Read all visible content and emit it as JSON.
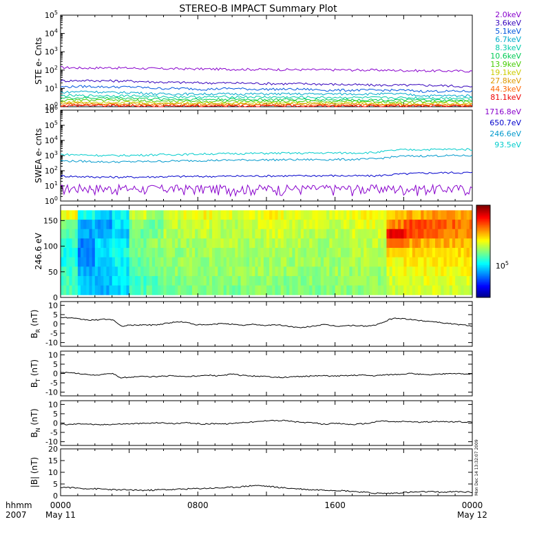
{
  "title": "STEREO-B IMPACT Summary Plot",
  "footer": {
    "time_label": "hhmm",
    "year_label": "2007",
    "stamp": "Mon Dec 14 13:32:07 2009"
  },
  "colors": {
    "ste_channels": [
      "#8800cc",
      "#3300bb",
      "#0055dd",
      "#00aacc",
      "#00ccaa",
      "#00cc55",
      "#44cc00",
      "#cccc00",
      "#dd9900",
      "#ff6600",
      "#ee0000"
    ],
    "swea_channels": [
      "#8800cc",
      "#0000cc",
      "#0099cc",
      "#00cccc"
    ],
    "mag_trace": "#000000"
  },
  "chart_data": [
    {
      "type": "line",
      "id": "ste",
      "ylabel": "STE e- Cnts",
      "y_scale": "log",
      "ylim": [
        1,
        100000
      ],
      "y_ticks": [
        {
          "v": 1,
          "b": "10",
          "e": "0"
        },
        {
          "v": 10,
          "b": "10",
          "e": "1"
        },
        {
          "v": 100,
          "b": "10",
          "e": "2"
        },
        {
          "v": 1000,
          "b": "10",
          "e": "3"
        },
        {
          "v": 10000,
          "b": "10",
          "e": "4"
        },
        {
          "v": 100000,
          "b": "10",
          "e": "5"
        }
      ],
      "series": [
        {
          "name": "2.0keV",
          "values": [
            140,
            130,
            135,
            128,
            120,
            118,
            115,
            112,
            110,
            108,
            105,
            104,
            102,
            100,
            96,
            92,
            90,
            88
          ]
        },
        {
          "name": "3.6keV",
          "values": [
            26,
            27,
            26,
            25,
            22,
            21,
            20,
            20,
            19,
            18,
            18,
            17,
            16,
            15,
            15,
            15,
            14,
            12
          ]
        },
        {
          "name": "5.1keV",
          "values": [
            12,
            13,
            12,
            12,
            10,
            10,
            9,
            10,
            9,
            9,
            9,
            8,
            8,
            8,
            8,
            7,
            7,
            7
          ]
        },
        {
          "name": "6.7keV",
          "values": [
            6,
            7,
            6,
            6,
            5,
            5,
            5,
            5,
            5,
            5,
            5,
            5,
            5,
            5,
            5,
            4,
            4,
            4
          ]
        },
        {
          "name": "8.3keV",
          "values": [
            4,
            4,
            4,
            4,
            3.5,
            3.5,
            3.4,
            3.5,
            3.4,
            3.3,
            3.3,
            3.2,
            3.2,
            3.1,
            3.1,
            3,
            3,
            3
          ]
        },
        {
          "name": "10.6keV",
          "values": [
            3,
            3,
            3,
            3,
            2.6,
            2.6,
            2.5,
            2.6,
            2.5,
            2.5,
            2.5,
            2.4,
            2.4,
            2.4,
            2.3,
            2.3,
            2.2,
            2.2
          ]
        },
        {
          "name": "13.9keV",
          "values": [
            2.2,
            2.3,
            2.2,
            2.2,
            2,
            2,
            2,
            2,
            2,
            2,
            2,
            2,
            2,
            1.9,
            1.9,
            1.9,
            1.9,
            1.9
          ]
        },
        {
          "name": "19.1keV",
          "values": [
            1.8,
            1.8,
            1.8,
            1.7,
            1.6,
            1.6,
            1.6,
            1.6,
            1.6,
            1.6,
            1.6,
            1.6,
            1.6,
            1.5,
            1.5,
            1.5,
            1.5,
            1.5
          ]
        },
        {
          "name": "27.8keV",
          "values": [
            1.5,
            1.5,
            1.5,
            1.4,
            1.4,
            1.4,
            1.4,
            1.4,
            1.4,
            1.4,
            1.4,
            1.4,
            1.4,
            1.3,
            1.3,
            1.3,
            1.3,
            1.3
          ]
        },
        {
          "name": "44.3keV",
          "values": [
            1.3,
            1.3,
            1.3,
            1.2,
            1.2,
            1.2,
            1.2,
            1.2,
            1.2,
            1.2,
            1.2,
            1.2,
            1.2,
            1.2,
            1.2,
            1.2,
            1.2,
            1.2
          ]
        },
        {
          "name": "81.1keV",
          "values": [
            1.15,
            1.2,
            1.15,
            1.1,
            1.1,
            1.1,
            1.1,
            1.1,
            1.1,
            1.1,
            1.1,
            1.1,
            1.1,
            1.1,
            1.1,
            1.1,
            1.1,
            1.1
          ]
        }
      ]
    },
    {
      "type": "line",
      "id": "swea",
      "ylabel": "SWEA e- cnts",
      "y_scale": "log",
      "ylim": [
        1,
        1000000
      ],
      "y_ticks": [
        {
          "v": 1,
          "b": "10",
          "e": "0"
        },
        {
          "v": 10,
          "b": "10",
          "e": "1"
        },
        {
          "v": 100,
          "b": "10",
          "e": "2"
        },
        {
          "v": 1000,
          "b": "10",
          "e": "3"
        },
        {
          "v": 10000,
          "b": "10",
          "e": "4"
        },
        {
          "v": 100000,
          "b": "10",
          "e": "5"
        },
        {
          "v": 1000000,
          "b": "10",
          "e": "6"
        }
      ],
      "series": [
        {
          "name": "1716.8eV",
          "values": [
            6,
            7,
            6,
            6,
            6,
            6,
            6,
            6,
            6,
            6,
            6,
            6,
            6,
            6,
            6,
            6,
            6,
            6
          ]
        },
        {
          "name": "650.7eV",
          "values": [
            45,
            40,
            38,
            38,
            40,
            42,
            42,
            44,
            45,
            46,
            46,
            48,
            46,
            46,
            60,
            70,
            75,
            75
          ]
        },
        {
          "name": "246.6eV",
          "values": [
            450,
            420,
            380,
            400,
            420,
            450,
            480,
            500,
            520,
            530,
            540,
            550,
            560,
            600,
            900,
            950,
            1000,
            1000
          ]
        },
        {
          "name": "93.5eV",
          "values": [
            1200,
            1100,
            1000,
            1050,
            1150,
            1200,
            1300,
            1350,
            1400,
            1450,
            1450,
            1500,
            1500,
            1600,
            2400,
            2500,
            2600,
            2600
          ]
        }
      ]
    },
    {
      "type": "heatmap",
      "id": "pitch",
      "ylabel": "246.6 eV",
      "ylim": [
        0,
        180
      ],
      "y_ticks": [
        0,
        50,
        100,
        150
      ],
      "colorbar_label": "10^5",
      "x_bins": 24,
      "y_bins": 9,
      "values": [
        [
          0.62,
          0.4,
          0.32,
          0.38,
          0.58,
          0.52,
          0.6,
          0.6,
          0.62,
          0.6,
          0.58,
          0.6,
          0.62,
          0.6,
          0.6,
          0.58,
          0.6,
          0.62,
          0.62,
          0.66,
          0.7,
          0.72,
          0.74,
          0.72
        ],
        [
          0.5,
          0.3,
          0.28,
          0.35,
          0.5,
          0.48,
          0.56,
          0.58,
          0.58,
          0.56,
          0.55,
          0.58,
          0.6,
          0.58,
          0.58,
          0.56,
          0.58,
          0.6,
          0.6,
          0.75,
          0.8,
          0.8,
          0.78,
          0.76
        ],
        [
          0.45,
          0.28,
          0.3,
          0.33,
          0.48,
          0.5,
          0.55,
          0.55,
          0.56,
          0.55,
          0.55,
          0.56,
          0.58,
          0.56,
          0.56,
          0.55,
          0.56,
          0.58,
          0.58,
          0.88,
          0.82,
          0.78,
          0.76,
          0.74
        ],
        [
          0.42,
          0.26,
          0.34,
          0.36,
          0.48,
          0.52,
          0.54,
          0.54,
          0.55,
          0.55,
          0.54,
          0.55,
          0.56,
          0.55,
          0.55,
          0.54,
          0.55,
          0.56,
          0.56,
          0.8,
          0.72,
          0.7,
          0.7,
          0.7
        ],
        [
          0.4,
          0.24,
          0.36,
          0.4,
          0.48,
          0.52,
          0.52,
          0.53,
          0.54,
          0.54,
          0.53,
          0.54,
          0.54,
          0.54,
          0.54,
          0.53,
          0.54,
          0.55,
          0.55,
          0.68,
          0.66,
          0.66,
          0.66,
          0.66
        ],
        [
          0.4,
          0.26,
          0.34,
          0.38,
          0.47,
          0.5,
          0.52,
          0.53,
          0.53,
          0.53,
          0.53,
          0.53,
          0.54,
          0.53,
          0.53,
          0.52,
          0.53,
          0.54,
          0.54,
          0.62,
          0.64,
          0.64,
          0.65,
          0.64
        ],
        [
          0.42,
          0.3,
          0.32,
          0.36,
          0.46,
          0.48,
          0.52,
          0.52,
          0.53,
          0.52,
          0.52,
          0.53,
          0.53,
          0.52,
          0.52,
          0.52,
          0.53,
          0.53,
          0.53,
          0.6,
          0.62,
          0.62,
          0.62,
          0.62
        ],
        [
          0.44,
          0.32,
          0.3,
          0.34,
          0.44,
          0.46,
          0.5,
          0.51,
          0.52,
          0.51,
          0.51,
          0.52,
          0.52,
          0.51,
          0.51,
          0.51,
          0.52,
          0.52,
          0.52,
          0.58,
          0.6,
          0.6,
          0.6,
          0.6
        ],
        [
          0.46,
          0.34,
          0.3,
          0.34,
          0.44,
          0.46,
          0.5,
          0.5,
          0.51,
          0.5,
          0.5,
          0.51,
          0.51,
          0.5,
          0.5,
          0.5,
          0.51,
          0.51,
          0.51,
          0.56,
          0.58,
          0.58,
          0.58,
          0.58
        ]
      ]
    },
    {
      "type": "line",
      "id": "br",
      "ylabel_main": "B",
      "ylabel_sub": "R",
      "ylabel_unit": " (nT)",
      "ylim": [
        -12,
        12
      ],
      "y_ticks": [
        -10,
        -5,
        0,
        5,
        10
      ],
      "series": [
        {
          "values": [
            3.5,
            3.3,
            2.8,
            2.4,
            2.0,
            2.2,
            2.5,
            2.3,
            -1.2,
            -0.8,
            -0.6,
            -0.5,
            -0.6,
            -0.4,
            0.3,
            0.8,
            1.2,
            0.6,
            -0.3,
            -0.6,
            -0.4,
            0.0,
            0.3,
            -0.2,
            -0.8,
            -0.5,
            -0.2,
            -0.8,
            -0.6,
            -0.5,
            -1.0,
            -1.5,
            -2.2,
            -1.5,
            -1.0,
            -0.4,
            -0.8,
            -1.2,
            -1.0,
            -0.8,
            -1.0,
            -1.2,
            -0.6,
            0.5,
            2.6,
            3.0,
            2.8,
            2.2,
            1.8,
            1.5,
            1.2,
            0.6,
            0.2,
            -0.3,
            -0.6,
            -1.0
          ]
        }
      ]
    },
    {
      "type": "line",
      "id": "bt",
      "ylabel_main": "B",
      "ylabel_sub": "T",
      "ylabel_unit": " (nT)",
      "ylim": [
        -12,
        12
      ],
      "y_ticks": [
        -10,
        -5,
        0,
        5,
        10
      ],
      "series": [
        {
          "values": [
            0.6,
            0.4,
            0.2,
            -0.3,
            -0.6,
            -0.8,
            -0.4,
            -0.2,
            -2.2,
            -2.0,
            -1.8,
            -1.6,
            -1.8,
            -1.6,
            -1.4,
            -1.2,
            -1.5,
            -1.6,
            -1.4,
            -1.2,
            -1.0,
            -1.3,
            -0.8,
            -0.4,
            -1.0,
            -1.2,
            -1.4,
            -1.6,
            -1.8,
            -2.0,
            -2.1,
            -1.8,
            -1.6,
            -1.5,
            -1.3,
            -1.2,
            -1.4,
            -1.3,
            -1.2,
            -1.0,
            -0.8,
            -1.0,
            -1.2,
            -0.8,
            -0.6,
            -0.4,
            -0.2,
            0.0,
            -0.4,
            -0.8,
            -0.5,
            -0.3,
            0.2,
            -0.1,
            -0.4,
            -0.2
          ]
        }
      ]
    },
    {
      "type": "line",
      "id": "bn",
      "ylabel_main": "B",
      "ylabel_sub": "N",
      "ylabel_unit": " (nT)",
      "ylim": [
        -12,
        12
      ],
      "y_ticks": [
        -10,
        -5,
        0,
        5,
        10
      ],
      "series": [
        {
          "values": [
            -0.6,
            -0.8,
            -0.5,
            -0.3,
            -0.6,
            -1.0,
            -0.8,
            -0.6,
            -0.5,
            -0.4,
            -0.3,
            -0.2,
            -0.1,
            0.2,
            0.0,
            -0.3,
            -0.2,
            0.2,
            -0.2,
            -0.6,
            -0.4,
            -0.2,
            -0.5,
            -0.2,
            0.3,
            0.5,
            0.6,
            1.0,
            1.6,
            1.2,
            1.4,
            0.8,
            0.4,
            0.2,
            0.0,
            -0.6,
            -0.4,
            -0.2,
            -0.5,
            -0.8,
            -0.4,
            -0.2,
            0.6,
            1.2,
            0.8,
            0.6,
            0.9,
            0.7,
            0.4,
            0.6,
            0.8,
            1.0,
            0.6,
            0.7,
            0.5,
            0.6
          ]
        }
      ]
    },
    {
      "type": "line",
      "id": "bmag",
      "ylabel_main": "|B| (nT)",
      "ylim": [
        0,
        20
      ],
      "y_ticks": [
        0,
        5,
        10,
        15,
        20
      ],
      "x_ticks": [
        {
          "t": 0,
          "top": "0000",
          "bottom": "May 11"
        },
        {
          "t": 8,
          "top": "0800",
          "bottom": ""
        },
        {
          "t": 16,
          "top": "1600",
          "bottom": ""
        },
        {
          "t": 24,
          "top": "0000",
          "bottom": "May 12"
        }
      ],
      "xlim": [
        0,
        24
      ],
      "series": [
        {
          "values": [
            3.6,
            3.5,
            3.3,
            3.1,
            3.0,
            2.9,
            2.8,
            2.6,
            2.4,
            2.5,
            2.4,
            2.3,
            2.3,
            2.5,
            2.6,
            2.6,
            2.8,
            2.9,
            3.0,
            3.1,
            3.2,
            3.3,
            3.4,
            3.6,
            3.8,
            4.1,
            4.4,
            4.2,
            3.9,
            3.6,
            3.3,
            3.1,
            2.9,
            2.6,
            2.5,
            2.5,
            2.4,
            2.3,
            2.1,
            1.9,
            1.6,
            1.3,
            1.1,
            1.0,
            1.0,
            1.2,
            1.4,
            1.5,
            1.6,
            1.7,
            1.6,
            1.5,
            1.6,
            1.7,
            1.6,
            1.5
          ]
        }
      ]
    }
  ]
}
